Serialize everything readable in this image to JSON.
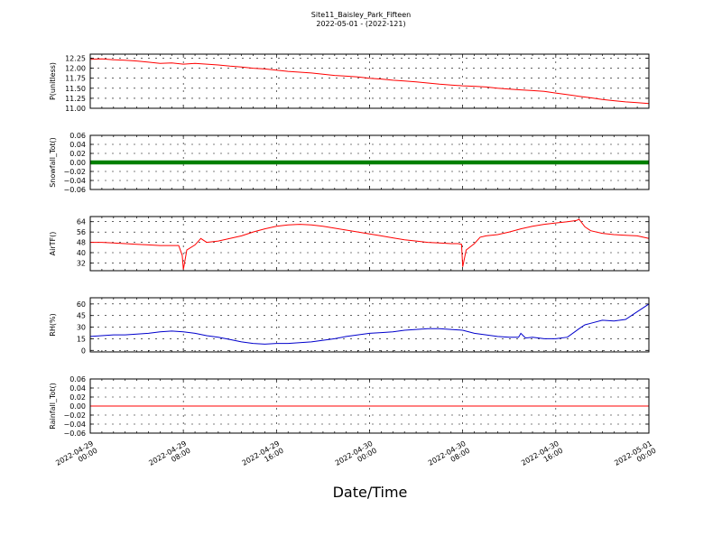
{
  "figure": {
    "title": "Site11_Baisley_Park_Fifteen",
    "subtitle": "2022-05-01 - (2022-121)",
    "xlabel": "Date/Time"
  },
  "chart_data": [
    {
      "type": "line",
      "ylabel": "P(unitless)",
      "ylim": [
        11.0,
        12.35
      ],
      "yticks": [
        "12.25",
        "12.00",
        "11.75",
        "11.50",
        "11.25",
        "11.00"
      ],
      "ytick_values": [
        12.25,
        12.0,
        11.75,
        11.5,
        11.25,
        11.0
      ],
      "grid": true,
      "series": [
        {
          "color": "#ff0000",
          "x": [
            0,
            1,
            2,
            3,
            4,
            5,
            6,
            7,
            8,
            9,
            10,
            11,
            12,
            13,
            14,
            15,
            16,
            17,
            18,
            19,
            20,
            21,
            22,
            23,
            24,
            25,
            26,
            27,
            28,
            29,
            30,
            31,
            32,
            33,
            34,
            35,
            36,
            37,
            38,
            39,
            40,
            41,
            42,
            43,
            44,
            45,
            46,
            47,
            48
          ],
          "y": [
            12.22,
            12.23,
            12.21,
            12.2,
            12.18,
            12.15,
            12.12,
            12.13,
            12.1,
            12.12,
            12.1,
            12.08,
            12.05,
            12.03,
            12.0,
            11.98,
            11.95,
            11.92,
            11.9,
            11.88,
            11.85,
            11.82,
            11.8,
            11.78,
            11.75,
            11.73,
            11.7,
            11.68,
            11.66,
            11.63,
            11.6,
            11.58,
            11.56,
            11.55,
            11.53,
            11.5,
            11.48,
            11.46,
            11.44,
            11.42,
            11.38,
            11.34,
            11.3,
            11.26,
            11.22,
            11.19,
            11.16,
            11.14,
            11.12
          ]
        }
      ]
    },
    {
      "type": "scatter",
      "ylabel": "Snowfall_Tot()",
      "ylim": [
        -0.06,
        0.06
      ],
      "yticks": [
        "0.06",
        "0.04",
        "0.02",
        "0.00",
        "−0.02",
        "−0.04",
        "−0.06"
      ],
      "ytick_values": [
        0.06,
        0.04,
        0.02,
        0.0,
        -0.02,
        -0.04,
        -0.06
      ],
      "grid": true,
      "series": [
        {
          "color": "#008000",
          "constant": 0.0,
          "x_range": [
            0,
            48
          ]
        }
      ]
    },
    {
      "type": "line",
      "ylabel": "AirTF()",
      "ylim": [
        26,
        68
      ],
      "yticks": [
        "64",
        "56",
        "48",
        "40",
        "32"
      ],
      "ytick_values": [
        64,
        56,
        48,
        40,
        32
      ],
      "grid": true,
      "series": [
        {
          "color": "#ff0000",
          "x": [
            0,
            1,
            2,
            3,
            4,
            5,
            6,
            7,
            7.6,
            7.9,
            8.0,
            8.3,
            9,
            9.5,
            10,
            11,
            12,
            13,
            14,
            15,
            16,
            17,
            18,
            19,
            20,
            21,
            22,
            23,
            24,
            25,
            26,
            27,
            28,
            29,
            30,
            31,
            31.6,
            31.9,
            32.0,
            32.3,
            33,
            33.5,
            34,
            35,
            36,
            37,
            38,
            39,
            40,
            41,
            41.8,
            42,
            42.5,
            43,
            44,
            45,
            46,
            47,
            48
          ],
          "y": [
            48,
            48,
            47.5,
            47,
            46.5,
            46,
            45.5,
            45.5,
            45.5,
            38,
            27,
            42,
            46,
            51,
            48,
            49,
            51,
            53,
            56,
            58.5,
            60.5,
            61.5,
            62,
            61.5,
            60.5,
            59,
            57.5,
            56,
            54.5,
            53,
            51.5,
            50,
            49,
            48,
            47.5,
            47,
            47,
            46.5,
            29,
            42,
            47,
            52,
            53,
            54,
            56,
            58.5,
            60.5,
            62,
            63,
            64,
            65,
            66,
            60,
            57,
            55,
            54,
            53.5,
            53,
            51
          ]
        }
      ]
    },
    {
      "type": "line",
      "ylabel": "RH(%)",
      "ylim": [
        -2,
        68
      ],
      "yticks": [
        "60",
        "45",
        "30",
        "15",
        "0"
      ],
      "ytick_values": [
        60,
        45,
        30,
        15,
        0
      ],
      "grid": true,
      "series": [
        {
          "color": "#0000cc",
          "x": [
            0,
            1,
            2,
            3,
            4,
            5,
            6,
            7,
            8,
            9,
            10,
            11,
            12,
            13,
            14,
            15,
            16,
            17,
            18,
            19,
            20,
            21,
            22,
            23,
            24,
            25,
            26,
            27,
            28,
            29,
            30,
            31,
            32,
            33,
            34,
            35,
            36,
            36.8,
            37,
            37.4,
            38,
            39,
            40,
            41,
            42,
            42.5,
            43,
            44,
            45,
            46,
            47,
            48
          ],
          "y": [
            18,
            19,
            20,
            20,
            21,
            22,
            24,
            25,
            24,
            22,
            19,
            17,
            14,
            11,
            9,
            8,
            9,
            9,
            10,
            11,
            13,
            15,
            18,
            20,
            22,
            23,
            24,
            26,
            27,
            28,
            28,
            27,
            26,
            22,
            20,
            18,
            17,
            17,
            22,
            16,
            17,
            15,
            15,
            17,
            28,
            33,
            35,
            39,
            38,
            40,
            50,
            60
          ]
        }
      ]
    },
    {
      "type": "line",
      "ylabel": "Rainfall_Tot()",
      "ylim": [
        -0.06,
        0.06
      ],
      "yticks": [
        "0.06",
        "0.04",
        "0.02",
        "0.00",
        "−0.02",
        "−0.04",
        "−0.06"
      ],
      "ytick_values": [
        0.06,
        0.04,
        0.02,
        0.0,
        -0.02,
        -0.04,
        -0.06
      ],
      "grid": true,
      "series": [
        {
          "color": "#ff0000",
          "constant": 0.0,
          "x_range": [
            0,
            48
          ]
        }
      ]
    }
  ],
  "xaxis": {
    "range": [
      0,
      48
    ],
    "unit": "hours since 2022-04-29 00:00",
    "ticks": [
      {
        "value": 0,
        "date": "2022-04-29",
        "time": "00:00"
      },
      {
        "value": 8,
        "date": "2022-04-29",
        "time": "08:00"
      },
      {
        "value": 16,
        "date": "2022-04-29",
        "time": "16:00"
      },
      {
        "value": 24,
        "date": "2022-04-30",
        "time": "00:00"
      },
      {
        "value": 32,
        "date": "2022-04-30",
        "time": "08:00"
      },
      {
        "value": 40,
        "date": "2022-04-30",
        "time": "16:00"
      },
      {
        "value": 48,
        "date": "2022-05-01",
        "time": "00:00"
      }
    ]
  }
}
